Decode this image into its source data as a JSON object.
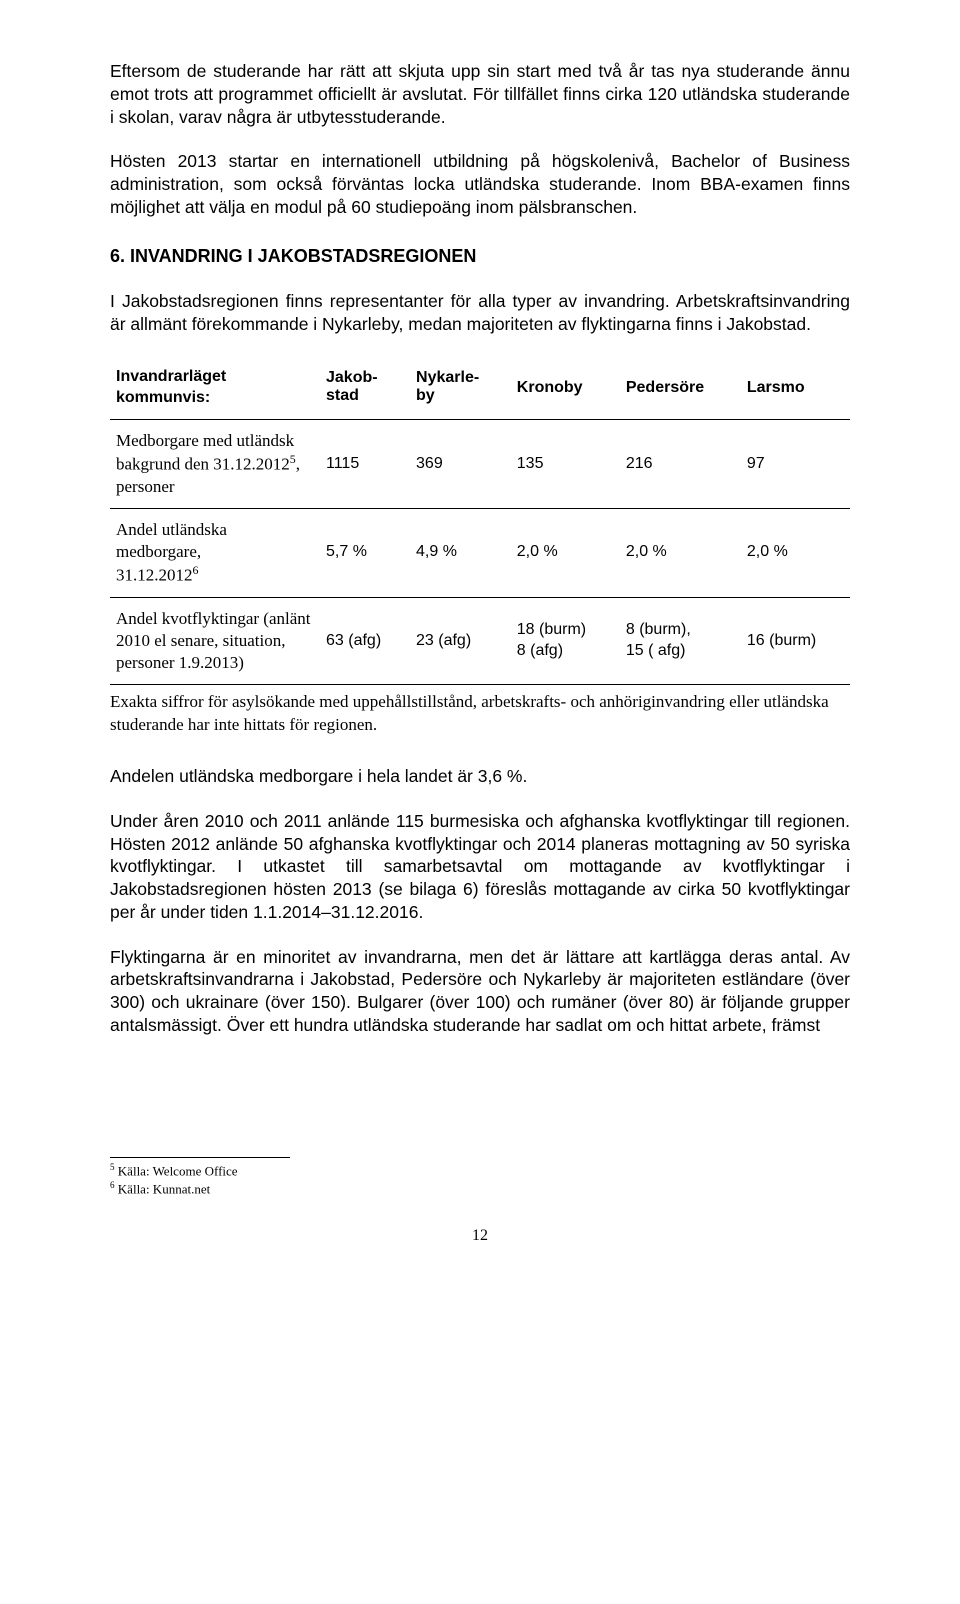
{
  "paragraphs": {
    "p1": "Eftersom de studerande har rätt att skjuta upp sin start med två år tas nya studerande ännu emot trots att programmet officiellt är avslutat. För tillfället finns cirka 120 utländska studerande i skolan, varav några är utbytesstuderande.",
    "p2": "Hösten 2013 startar en internationell utbildning på högskolenivå, Bachelor of Business administration, som också förväntas locka utländska studerande. Inom BBA-examen finns möjlighet att välja en modul på 60 studiepoäng inom pälsbranschen.",
    "heading": "6. INVANDRING I JAKOBSTADSREGIONEN",
    "p3": "I Jakobstadsregionen finns representanter för alla typer av invandring. Arbetskraftsinvandring är allmänt förekommande i Nykarleby, medan majoriteten av flyktingarna finns i Jakobstad.",
    "note": "Exakta siffror för asylsökande med uppehållstillstånd, arbetskrafts- och anhöriginvandring eller utländska studerande har inte hittats för regionen.",
    "p4": "Andelen utländska medborgare i hela landet är 3,6 %.",
    "p5": "Under åren 2010 och 2011 anlände 115 burmesiska och afghanska kvotflyktingar till regionen. Hösten 2012 anlände 50 afghanska kvotflyktingar och 2014 planeras mottagning av 50 syriska kvotflyktingar. I utkastet till samarbetsavtal om mottagande av kvotflyktingar i Jakobstadsregionen hösten 2013 (se bilaga 6) föreslås mottagande av cirka 50 kvotflyktingar per år under tiden 1.1.2014–31.12.2016.",
    "p6": "Flyktingarna är en minoritet av invandrarna, men det är lättare att kartlägga deras antal. Av arbetskraftsinvandrarna i Jakobstad, Pedersöre och Nykarleby är majoriteten estländare (över 300) och ukrainare (över 150). Bulgarer (över 100) och rumäner (över 80) är följande grupper antalsmässigt. Över ett hundra utländska studerande har sadlat om och hittat arbete, främst"
  },
  "table": {
    "header_label": "Invandrarläget kommunvis:",
    "columns": [
      "Jakob-\nstad",
      "Nykarle-\nby",
      "Kronoby",
      "Pedersöre",
      "Larsmo"
    ],
    "rows": [
      {
        "label_lines": [
          "Medborgare med utländsk",
          "bakgrund den 31.12.2012",
          ","
        ],
        "sup": "5",
        "label_tail": "personer",
        "cells": [
          "1115",
          "369",
          "135",
          "216",
          "97"
        ]
      },
      {
        "label_lines": [
          "Andel utländska medborgare,",
          "31.12.2012"
        ],
        "sup": "6",
        "label_tail": "",
        "cells": [
          "5,7 %",
          "4,9 %",
          "2,0 %",
          "2,0 %",
          "2,0 %"
        ]
      },
      {
        "label_lines": [
          "Andel kvotflyktingar (anlänt",
          "2010 el senare, situation,",
          "personer 1.9.2013)"
        ],
        "sup": "",
        "label_tail": "",
        "cells": [
          "63 (afg)",
          "23 (afg)",
          "18 (burm)\n8 (afg)",
          "8 (burm),\n15 ( afg)",
          "16  (burm)"
        ]
      }
    ]
  },
  "footnotes": {
    "f5": "Källa: Welcome Office",
    "f6": "Källa: Kunnat.net"
  },
  "pagenum": "12"
}
